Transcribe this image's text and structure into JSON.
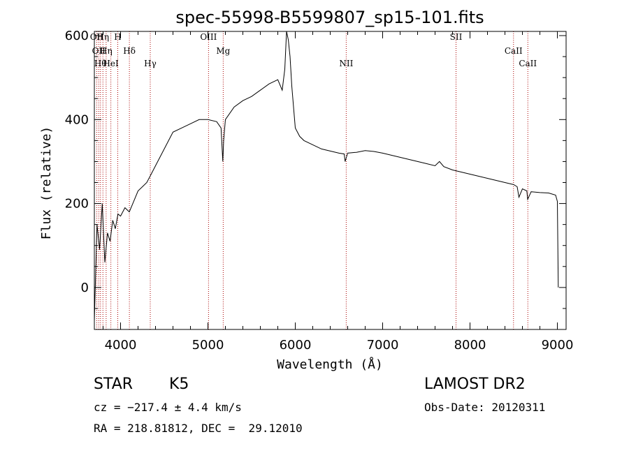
{
  "chart_data": {
    "type": "line",
    "title": "spec-55998-B5599807_sp15-101.fits",
    "xlabel": "Wavelength (Å)",
    "ylabel": "Flux (relative)",
    "xlim": [
      3700,
      9100
    ],
    "ylim": [
      -100,
      610
    ],
    "x_ticks": [
      4000,
      5000,
      6000,
      7000,
      8000,
      9000
    ],
    "y_ticks": [
      0,
      200,
      400,
      600
    ],
    "grid": false,
    "series": [
      {
        "x": [
          3700,
          3730,
          3760,
          3790,
          3820,
          3850,
          3880,
          3910,
          3940,
          3970,
          4000,
          4050,
          4100,
          4150,
          4200,
          4250,
          4300,
          4350,
          4400,
          4500,
          4600,
          4700,
          4800,
          4900,
          5000,
          5100,
          5150,
          5170,
          5180,
          5200,
          5300,
          5400,
          5500,
          5600,
          5700,
          5800,
          5850,
          5880,
          5900,
          5920,
          5940,
          5960,
          5980,
          6000,
          6050,
          6100,
          6200,
          6300,
          6400,
          6500,
          6560,
          6570,
          6600,
          6700,
          6800,
          6900,
          7000,
          7100,
          7200,
          7300,
          7400,
          7500,
          7600,
          7650,
          7700,
          7800,
          7900,
          8000,
          8100,
          8200,
          8300,
          8400,
          8500,
          8540,
          8560,
          8600,
          8650,
          8660,
          8700,
          8800,
          8900,
          8980,
          9000,
          9010
        ],
        "y": [
          -80,
          150,
          90,
          200,
          60,
          130,
          110,
          160,
          140,
          175,
          170,
          190,
          180,
          205,
          230,
          240,
          250,
          270,
          290,
          330,
          370,
          380,
          390,
          400,
          400,
          395,
          380,
          300,
          350,
          400,
          430,
          445,
          455,
          470,
          485,
          495,
          470,
          520,
          610,
          590,
          550,
          480,
          430,
          380,
          360,
          350,
          340,
          330,
          325,
          320,
          318,
          300,
          320,
          322,
          326,
          324,
          320,
          315,
          310,
          305,
          300,
          295,
          290,
          300,
          288,
          280,
          275,
          270,
          265,
          260,
          255,
          250,
          245,
          240,
          215,
          235,
          230,
          210,
          228,
          226,
          225,
          220,
          205,
          0
        ]
      }
    ],
    "line_markers": [
      {
        "x": 3727,
        "label": "OII"
      },
      {
        "x": 3750,
        "label": "OII"
      },
      {
        "x": 3770,
        "label": "Hθ"
      },
      {
        "x": 3798,
        "label": "Hη"
      },
      {
        "x": 3835,
        "label": "Hη"
      },
      {
        "x": 3889,
        "label": "HeI"
      },
      {
        "x": 3968,
        "label": "H"
      },
      {
        "x": 4101,
        "label": "Hδ"
      },
      {
        "x": 4340,
        "label": "Hγ"
      },
      {
        "x": 5007,
        "label": "OIII"
      },
      {
        "x": 5175,
        "label": "Mg"
      },
      {
        "x": 6583,
        "label": "NII"
      },
      {
        "x": 7840,
        "label": "SII"
      },
      {
        "x": 8498,
        "label": "CaII"
      },
      {
        "x": 8662,
        "label": "CaII"
      }
    ]
  },
  "info": {
    "object_type": "STAR",
    "subclass": "K5",
    "survey": "LAMOST DR2",
    "redshift_line": "cz = −217.4 ± 4.4 km/s",
    "obs_date_line": "Obs-Date: 20120311",
    "coords_line": "RA = 218.81812, DEC =  29.12010"
  },
  "colors": {
    "spectrum": "#000000",
    "marker": "#aa0000"
  }
}
